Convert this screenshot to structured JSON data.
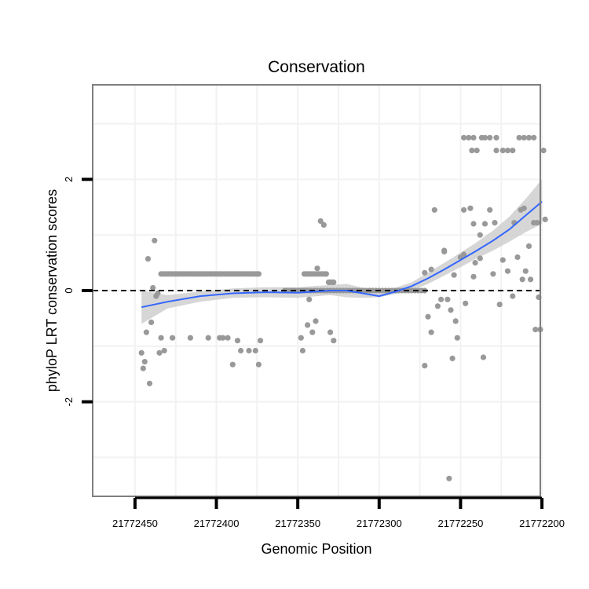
{
  "chart_data": {
    "type": "scatter",
    "title": "Conservation",
    "xlabel": "Genomic Position",
    "ylabel": "phyloP LRT conservation scores",
    "x_reversed": true,
    "xlim": [
      21772201,
      21772476
    ],
    "ylim": [
      -3.7,
      3.7
    ],
    "grid": true,
    "legend": "none",
    "x_ticks": [
      21772450,
      21772400,
      21772350,
      21772300,
      21772250,
      21772200
    ],
    "x_tick_labels": [
      "21772450",
      "21772400",
      "21772350",
      "21772300",
      "21772250",
      "21772200"
    ],
    "y_ticks": [
      -2,
      0,
      2
    ],
    "y_tick_labels": [
      "-2",
      "0",
      "2"
    ],
    "reference_line": {
      "y": 0,
      "style": "dashed",
      "color": "#000000"
    },
    "colors": {
      "points": "#999999",
      "smooth": "#3366ff",
      "band": "#cccccc",
      "panel_border": "#7f7f7f",
      "grid": "#f2f2f2"
    },
    "series": [
      {
        "name": "phyloP points",
        "points": [
          [
            21772446,
            -1.12
          ],
          [
            21772445,
            -1.4
          ],
          [
            21772444,
            -1.28
          ],
          [
            21772443,
            -0.75
          ],
          [
            21772442,
            0.57
          ],
          [
            21772441,
            -1.67
          ],
          [
            21772440,
            -0.57
          ],
          [
            21772439,
            0.05
          ],
          [
            21772438,
            0.9
          ],
          [
            21772437,
            -0.1
          ],
          [
            21772436,
            -0.05
          ],
          [
            21772435,
            -1.12
          ],
          [
            21772434,
            -0.85
          ],
          [
            21772432,
            -1.08
          ],
          [
            21772427,
            -0.85
          ],
          [
            21772416,
            -0.85
          ],
          [
            21772405,
            -0.85
          ],
          [
            21772398,
            -0.85
          ],
          [
            21772396,
            -0.85
          ],
          [
            21772393,
            -0.85
          ],
          [
            21772390,
            -1.33
          ],
          [
            21772387,
            -0.9
          ],
          [
            21772385,
            -1.08
          ],
          [
            21772380,
            -1.08
          ],
          [
            21772376,
            -1.08
          ],
          [
            21772374,
            -1.33
          ],
          [
            21772373,
            -0.9
          ],
          [
            21772348,
            -0.85
          ],
          [
            21772347,
            -1.08
          ],
          [
            21772344,
            -0.62
          ],
          [
            21772343,
            -0.16
          ],
          [
            21772341,
            -0.75
          ],
          [
            21772339,
            -0.55
          ],
          [
            21772338,
            0.4
          ],
          [
            21772336,
            1.25
          ],
          [
            21772334,
            1.18
          ],
          [
            21772330,
            -0.75
          ],
          [
            21772328,
            -0.9
          ],
          [
            21772272,
            -1.35
          ],
          [
            21772270,
            -0.47
          ],
          [
            21772268,
            -0.75
          ],
          [
            21772266,
            1.45
          ],
          [
            21772264,
            -0.28
          ],
          [
            21772262,
            -0.16
          ],
          [
            21772260,
            0.7
          ],
          [
            21772258,
            -0.16
          ],
          [
            21772257,
            -3.38
          ],
          [
            21772256,
            -0.35
          ],
          [
            21772255,
            -1.22
          ],
          [
            21772253,
            -0.55
          ],
          [
            21772252,
            -0.85
          ],
          [
            21772250,
            0.6
          ],
          [
            21772248,
            1.45
          ],
          [
            21772247,
            -0.23
          ],
          [
            21772244,
            1.48
          ],
          [
            21772242,
            1.2
          ],
          [
            21772241,
            0.5
          ],
          [
            21772238,
            1.0
          ],
          [
            21772236,
            -1.2
          ],
          [
            21772235,
            1.2
          ],
          [
            21772232,
            1.45
          ],
          [
            21772230,
            0.3
          ],
          [
            21772229,
            1.22
          ],
          [
            21772226,
            -0.25
          ],
          [
            21772224,
            0.55
          ],
          [
            21772221,
            0.35
          ],
          [
            21772218,
            -0.1
          ],
          [
            21772217,
            1.22
          ],
          [
            21772215,
            0.6
          ],
          [
            21772213,
            1.45
          ],
          [
            21772212,
            0.2
          ],
          [
            21772211,
            1.48
          ],
          [
            21772210,
            0.35
          ],
          [
            21772208,
            0.8
          ],
          [
            21772207,
            0.2
          ],
          [
            21772205,
            1.22
          ],
          [
            21772204,
            -0.7
          ],
          [
            21772203,
            1.22
          ],
          [
            21772202,
            -0.12
          ],
          [
            21772201,
            -0.7
          ],
          [
            21772199,
            2.52
          ],
          [
            21772198,
            1.28
          ],
          [
            21772272,
            0.32
          ],
          [
            21772268,
            0.38
          ],
          [
            21772260,
            0.72
          ],
          [
            21772254,
            0.28
          ],
          [
            21772248,
            0.65
          ],
          [
            21772242,
            0.25
          ],
          [
            21772238,
            0.58
          ],
          [
            21772228,
            2.52
          ],
          [
            21772248,
            2.75
          ],
          [
            21772245,
            2.75
          ],
          [
            21772242,
            2.75
          ],
          [
            21772240,
            2.52
          ],
          [
            21772237,
            2.75
          ],
          [
            21772235,
            2.75
          ],
          [
            21772232,
            2.75
          ],
          [
            21772228,
            2.75
          ],
          [
            21772224,
            2.52
          ],
          [
            21772221,
            2.52
          ],
          [
            21772218,
            2.52
          ],
          [
            21772214,
            2.75
          ],
          [
            21772211,
            2.75
          ],
          [
            21772208,
            2.75
          ],
          [
            21772205,
            2.75
          ],
          [
            21772243,
            2.52
          ]
        ],
        "clusters": [
          {
            "x_from": 21772434,
            "x_to": 21772373,
            "y": 0.3,
            "step": 1.5
          },
          {
            "x_from": 21772346,
            "x_to": 21772332,
            "y": 0.3,
            "step": 1.5
          },
          {
            "x_from": 21772331,
            "x_to": 21772328,
            "y": 0.15,
            "step": 1
          },
          {
            "x_from": 21772358,
            "x_to": 21772272,
            "y": 0.0,
            "step": 2
          }
        ]
      },
      {
        "name": "smooth fit",
        "x": [
          21772446,
          21772430,
          21772410,
          21772390,
          21772370,
          21772350,
          21772330,
          21772320,
          21772310,
          21772300,
          21772290,
          21772280,
          21772270,
          21772260,
          21772250,
          21772240,
          21772230,
          21772220,
          21772210,
          21772200
        ],
        "y": [
          -0.3,
          -0.2,
          -0.1,
          -0.05,
          -0.03,
          -0.04,
          0.0,
          0.0,
          -0.05,
          -0.1,
          -0.02,
          0.08,
          0.22,
          0.38,
          0.55,
          0.72,
          0.9,
          1.1,
          1.35,
          1.6
        ],
        "band_low": [
          -0.6,
          -0.32,
          -0.2,
          -0.13,
          -0.12,
          -0.13,
          -0.08,
          -0.12,
          -0.13,
          -0.12,
          -0.06,
          0.0,
          0.12,
          0.27,
          0.42,
          0.58,
          0.72,
          0.88,
          1.05,
          1.2
        ],
        "band_high": [
          0.0,
          -0.08,
          -0.02,
          0.04,
          0.06,
          0.06,
          0.1,
          0.12,
          0.05,
          0.02,
          0.05,
          0.15,
          0.32,
          0.5,
          0.68,
          0.87,
          1.08,
          1.33,
          1.65,
          2.0
        ]
      }
    ]
  }
}
